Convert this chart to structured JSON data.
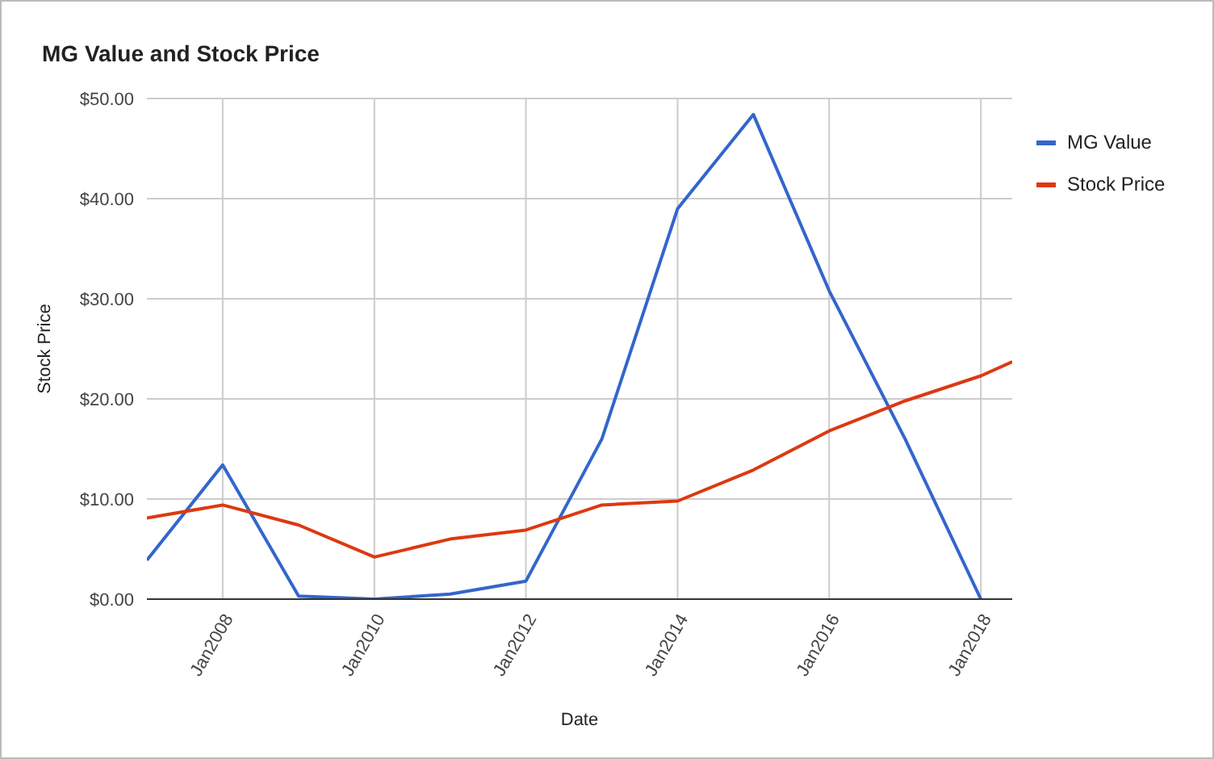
{
  "chart_data": {
    "type": "line",
    "title": "MG Value and Stock Price",
    "xlabel": "Date",
    "ylabel": "Stock Price",
    "x": [
      "2007-01",
      "2008-01",
      "2009-01",
      "2010-01",
      "2011-01",
      "2012-01",
      "2013-01",
      "2014-01",
      "2015-01",
      "2016-01",
      "2017-01",
      "2018-01",
      "2018-06"
    ],
    "series": [
      {
        "name": "MG Value",
        "color": "#3366cc",
        "values": [
          3.9,
          13.4,
          0.3,
          0,
          0.5,
          1.8,
          16,
          39,
          48.4,
          30.8,
          16,
          0,
          null
        ]
      },
      {
        "name": "Stock Price",
        "color": "#dc3912",
        "values": [
          8.1,
          9.4,
          7.4,
          4.2,
          6,
          6.9,
          9.4,
          9.8,
          12.9,
          16.8,
          19.8,
          22.3,
          23.7
        ]
      }
    ],
    "xlim": [
      "2007-01",
      "2018-06"
    ],
    "xticks": [
      {
        "value": "2008-01",
        "label": "Jan2008"
      },
      {
        "value": "2010-01",
        "label": "Jan2010"
      },
      {
        "value": "2012-01",
        "label": "Jan2012"
      },
      {
        "value": "2014-01",
        "label": "Jan2014"
      },
      {
        "value": "2016-01",
        "label": "Jan2016"
      },
      {
        "value": "2018-01",
        "label": "Jan2018"
      }
    ],
    "ylim": [
      0,
      50
    ],
    "yticks": [
      {
        "value": 0,
        "label": "$0.00"
      },
      {
        "value": 10,
        "label": "$10.00"
      },
      {
        "value": 20,
        "label": "$20.00"
      },
      {
        "value": 30,
        "label": "$30.00"
      },
      {
        "value": 40,
        "label": "$40.00"
      },
      {
        "value": 50,
        "label": "$50.00"
      }
    ],
    "grid": true,
    "legend": "top right",
    "marker": "none",
    "line_style": "solid"
  }
}
